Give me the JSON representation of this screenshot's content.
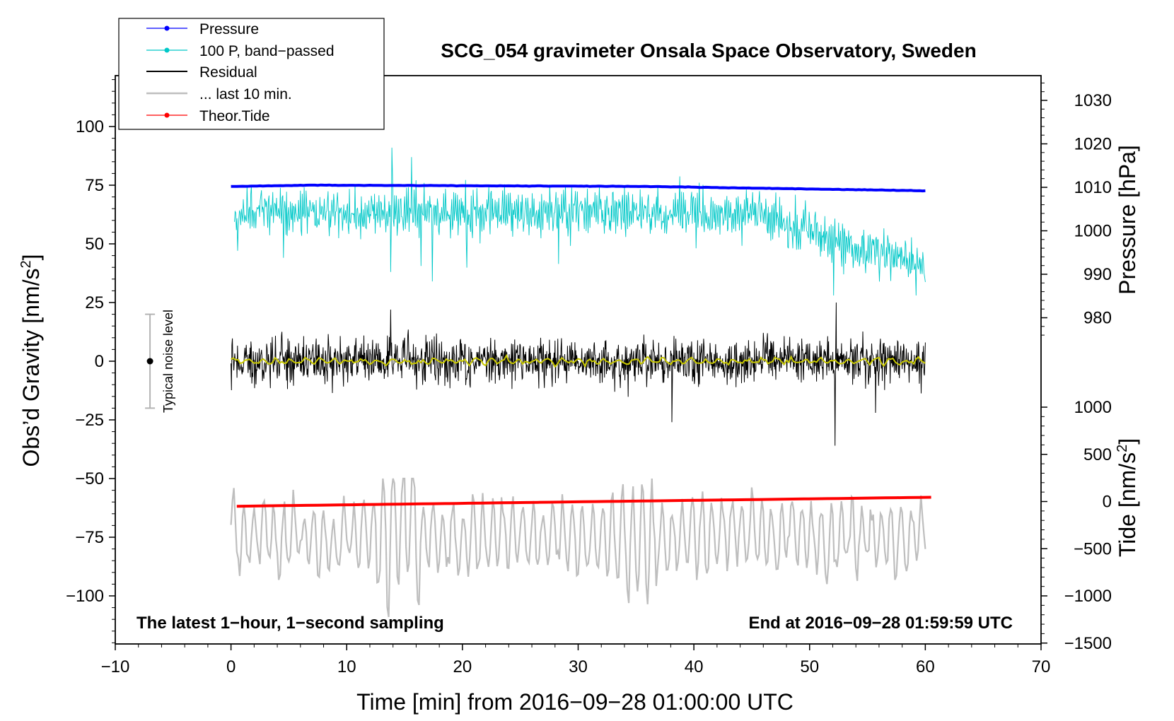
{
  "chart_data": {
    "type": "line",
    "title": "SCG_054 gravimeter Onsala Space Observatory, Sweden",
    "xlabel": "Time [min] from 2016−09−28 01:00:00 UTC",
    "ylabel_left": "Obs’d Gravity [nm/s",
    "ylabel_left_sup": "2",
    "ylabel_left_end": "]",
    "ylabel_right_pressure": "Pressure [hPa]",
    "ylabel_right_tide": "Tide [nm/s",
    "ylabel_right_tide_sup": "2",
    "ylabel_right_tide_end": "]",
    "xlim": [
      -10,
      70
    ],
    "ylim_left": [
      -120,
      120
    ],
    "x_ticks": [
      -10,
      0,
      10,
      20,
      30,
      40,
      50,
      60,
      70
    ],
    "x_tick_labels": [
      "−10",
      "0",
      "10",
      "20",
      "30",
      "40",
      "50",
      "60",
      "70"
    ],
    "y_left_ticks": [
      100,
      75,
      50,
      25,
      0,
      -25,
      -50,
      -75,
      -100
    ],
    "y_left_tick_labels": [
      "100",
      "75",
      "50",
      "25",
      "0",
      "−25",
      "−50",
      "−75",
      "−100"
    ],
    "pressure_axis_ticks": [
      1030,
      1020,
      1010,
      1000,
      990,
      980
    ],
    "pressure_axis_tick_labels": [
      "1030",
      "1020",
      "1010",
      "1000",
      "990",
      "980"
    ],
    "tide_axis_ticks": [
      1000,
      500,
      0,
      -500,
      -1000,
      -1500
    ],
    "tide_axis_tick_labels": [
      "1000",
      "500",
      "0",
      "−500",
      "−1000",
      "−1500"
    ],
    "note_left": "The latest 1−hour, 1−second sampling",
    "note_right": "End at 2016−09−28 01:59:59 UTC",
    "noise_bar": {
      "label": "Typical noise level",
      "x": -7,
      "center": 0,
      "half_range": 20
    },
    "series": [
      {
        "name": "Pressure",
        "units": "hPa",
        "axis": "pressure",
        "x_start": 0,
        "x_end": 60,
        "start": 1010.2,
        "end": 1009.2,
        "max": 1010.5,
        "max_at": 7,
        "color": "#0000ff"
      },
      {
        "name": "100 P, band−passed",
        "units": "nm/s2",
        "axis": "left",
        "x_start": 0.3,
        "x_end": 60,
        "baseline_start": 64,
        "baseline_end": 40,
        "amplitude": 8,
        "min": 28,
        "max": 91,
        "color": "#00c8c8"
      },
      {
        "name": "Residual",
        "units": "nm/s2",
        "axis": "left",
        "x_start": 0,
        "x_end": 60,
        "baseline": 0,
        "amplitude": 11,
        "min": -36,
        "max": 25,
        "smoothed_color": "#c8c800",
        "color": "#000000"
      },
      {
        "name": "... last 10 min.",
        "units": "nm/s2",
        "axis": "left",
        "x_start": 0,
        "x_end": 60,
        "baseline": -75,
        "amplitude": 12,
        "min": -109,
        "max": -50,
        "color": "#bebebe"
      },
      {
        "name": "Theor.Tide",
        "units": "nm/s2",
        "axis": "tide",
        "x_start": 0.5,
        "x_end": 60.5,
        "start": -50,
        "end": 45,
        "color": "#ff0000"
      }
    ],
    "legend": [
      {
        "label": "Pressure",
        "color": "#0000ff",
        "marker": true
      },
      {
        "label": "100 P, band−passed",
        "color": "#00c8c8",
        "marker": true
      },
      {
        "label": "Residual",
        "color": "#000000",
        "marker": false
      },
      {
        "label": "... last 10 min.",
        "color": "#bebebe",
        "marker": false
      },
      {
        "label": "Theor.Tide",
        "color": "#ff0000",
        "marker": true
      }
    ]
  }
}
